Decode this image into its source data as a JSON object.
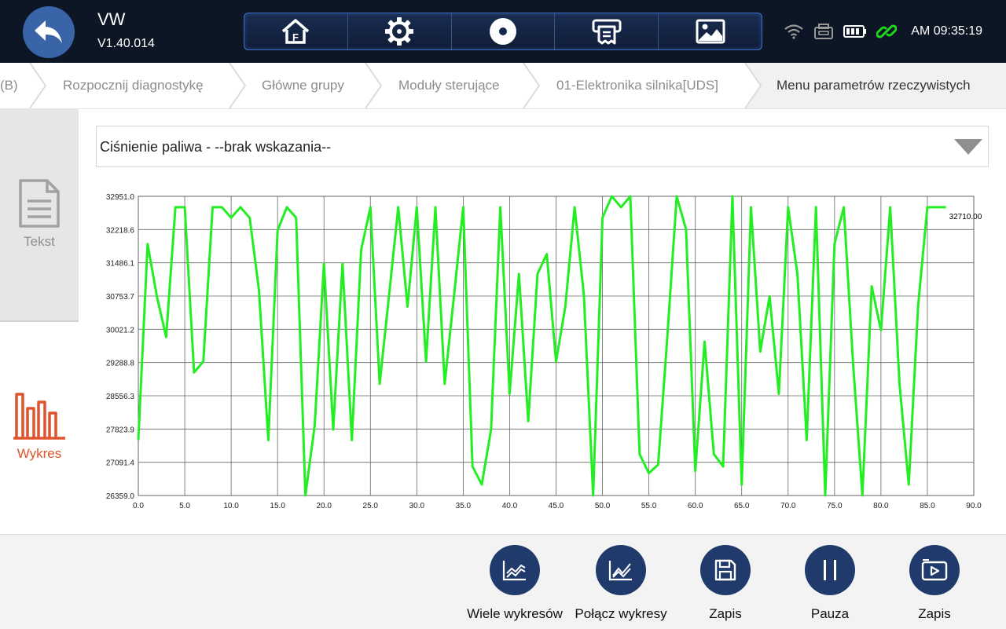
{
  "header": {
    "title": "VW",
    "version": "V1.40.014",
    "clock": "AM 09:35:19",
    "toolbar": [
      {
        "name": "home-icon",
        "label": ""
      },
      {
        "name": "gear-icon",
        "label": ""
      },
      {
        "name": "record-icon",
        "label": ""
      },
      {
        "name": "printer-icon",
        "label": ""
      },
      {
        "name": "image-icon",
        "label": ""
      }
    ]
  },
  "breadcrumb": [
    "(B)",
    "Rozpocznij diagnostykę",
    "Główne grupy",
    "Moduły sterujące",
    "01-Elektronika silnika[UDS]",
    "Menu parametrów rzeczywistych"
  ],
  "side": {
    "tekst": "Tekst",
    "wykres": "Wykres",
    "active_color": "#e0532c"
  },
  "dropdown": {
    "value": "Ciśnienie paliwa - --brak wskazania--"
  },
  "actions": [
    {
      "label": "Wiele wykresów",
      "icon": "multi-chart-icon"
    },
    {
      "label": "Połącz wykresy",
      "icon": "combine-chart-icon"
    },
    {
      "label": "Zapis",
      "icon": "save-icon"
    },
    {
      "label": "Pauza",
      "icon": "pause-icon"
    },
    {
      "label": "Zapis",
      "icon": "record-video-icon"
    }
  ],
  "chart_data": {
    "type": "line",
    "line_color": "#22ee22",
    "grid": true,
    "xlim": [
      0,
      90
    ],
    "ylim": [
      26359.0,
      32951.0
    ],
    "x_ticks": [
      "0.0",
      "5.0",
      "10.0",
      "15.0",
      "20.0",
      "25.0",
      "30.0",
      "35.0",
      "40.0",
      "45.0",
      "50.0",
      "55.0",
      "60.0",
      "65.0",
      "70.0",
      "75.0",
      "80.0",
      "85.0",
      "90.0"
    ],
    "y_ticks": [
      "26359.0",
      "27091.4",
      "27823.9",
      "28556.3",
      "29288.8",
      "30021.2",
      "30753.7",
      "31486.1",
      "32218.6",
      "32951.0"
    ],
    "current_value_label": "32710.00",
    "series": [
      {
        "x": [
          0,
          1,
          2,
          3,
          4,
          5,
          6,
          7,
          8,
          9,
          10,
          11,
          12,
          13,
          14,
          15,
          16,
          17,
          18,
          19,
          20,
          21,
          22,
          23,
          24,
          25,
          26,
          27,
          28,
          29,
          30,
          31,
          32,
          33,
          34,
          35,
          36,
          37,
          38,
          39,
          40,
          41,
          42,
          43,
          44,
          45,
          46,
          47,
          48,
          49,
          50,
          51,
          52,
          53,
          54,
          55,
          56,
          57,
          58,
          59,
          60,
          61,
          62,
          63,
          64,
          65,
          66,
          67,
          68,
          69,
          70,
          71,
          72,
          73,
          74,
          75,
          76,
          77,
          78,
          79,
          80,
          81,
          82,
          83,
          84,
          85,
          86,
          87
        ],
        "y": [
          27580,
          31900,
          30750,
          29850,
          32710,
          32710,
          29070,
          29310,
          32710,
          32710,
          32480,
          32710,
          32480,
          30880,
          27580,
          32200,
          32710,
          32480,
          26360,
          27900,
          31470,
          27810,
          31470,
          27580,
          31770,
          32710,
          28820,
          30750,
          32710,
          30520,
          32710,
          29310,
          32710,
          28820,
          30750,
          32710,
          27000,
          26600,
          27810,
          32710,
          28600,
          31240,
          28000,
          31240,
          31680,
          29310,
          30520,
          32710,
          30780,
          26360,
          32480,
          32951,
          32710,
          32951,
          27270,
          26850,
          27040,
          29880,
          32951,
          32220,
          26900,
          29750,
          27270,
          27000,
          32951,
          26600,
          32710,
          29530,
          30750,
          28600,
          32710,
          31240,
          27580,
          32710,
          26360,
          31900,
          32710,
          29250,
          26360,
          30970,
          30000,
          32710,
          28820,
          26600,
          30520,
          32710,
          32710,
          32710
        ]
      }
    ]
  }
}
